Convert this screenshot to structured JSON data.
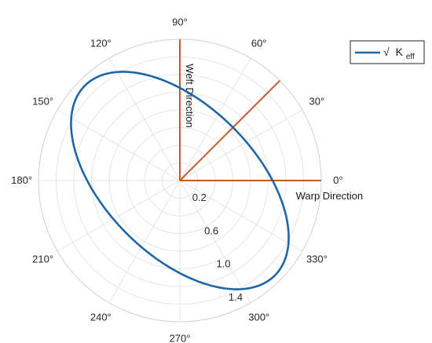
{
  "chart_data": {
    "type": "polar",
    "title": "",
    "theta_unit": "deg",
    "theta_ticks": [
      0,
      30,
      60,
      90,
      120,
      150,
      180,
      210,
      240,
      270,
      300,
      330
    ],
    "theta_tick_labels": [
      "0°",
      "30°",
      "60°",
      "90°",
      "120°",
      "150°",
      "180°",
      "210°",
      "240°",
      "270°",
      "300°",
      "330°"
    ],
    "r_lim": [
      0,
      1.6
    ],
    "r_ticks": [
      0.2,
      0.6,
      1.0,
      1.4
    ],
    "r_tick_labels": [
      "0.2",
      "0.6",
      "1.0",
      "1.4"
    ],
    "r_tick_label_angle_deg": 290,
    "r_grid_step": 0.2,
    "grid": true,
    "legend": {
      "position": "top-right",
      "entries": [
        "√ K_eff"
      ]
    },
    "series": [
      {
        "name": "√ K_eff",
        "style": "line",
        "color": "#1f66a6",
        "ellipse": {
          "a": 1.52,
          "b": 0.85,
          "major_axis_angle_deg": 135
        }
      }
    ],
    "direction_lines": [
      {
        "theta": 0,
        "r": 1.6,
        "label": "Warp Direction",
        "color": "#c55a23"
      },
      {
        "theta": 45,
        "r": 1.6,
        "label": "",
        "color": "#c55a23"
      },
      {
        "theta": 90,
        "r": 1.6,
        "label": "Weft Direction",
        "color": "#c55a23"
      }
    ]
  },
  "legend": {
    "sqrt_symbol": "√",
    "k_main": "K",
    "k_subscript": "eff"
  }
}
